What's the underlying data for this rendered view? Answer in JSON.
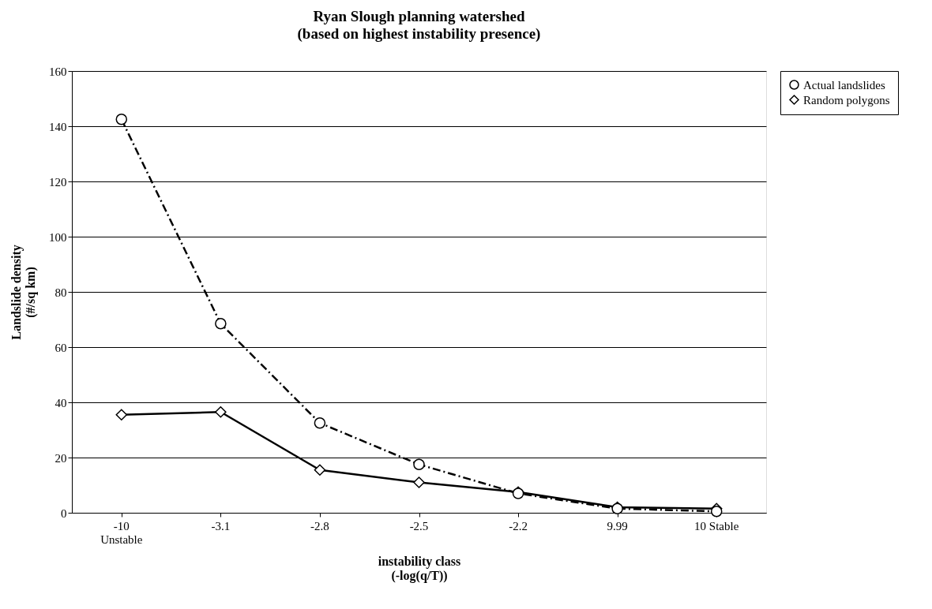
{
  "chart_data": {
    "type": "line",
    "title": "Ryan Slough planning watershed",
    "subtitle": "(based on highest instability presence)",
    "xlabel": "instability class\n(-log(q/T))",
    "ylabel": "Landslide density\n(#/sq km)",
    "categories": [
      "-10\nUnstable",
      "-3.1",
      "-2.8",
      "-2.5",
      "-2.2",
      "9.99",
      "10 Stable"
    ],
    "series": [
      {
        "name": "Actual landslides",
        "color": "#000000",
        "line_style": "dashed",
        "marker": "circle",
        "values": [
          142.5,
          68.5,
          32.5,
          17.5,
          7,
          1.5,
          0.5
        ]
      },
      {
        "name": "Random polygons",
        "color": "#000000",
        "line_style": "solid",
        "marker": "diamond",
        "values": [
          35.5,
          36.5,
          15.5,
          11,
          7.5,
          2,
          1.5
        ]
      }
    ],
    "ylim": [
      0,
      160
    ],
    "yticks": [
      0,
      20,
      40,
      60,
      80,
      100,
      120,
      140,
      160
    ],
    "grid": "y",
    "legend": "right"
  }
}
